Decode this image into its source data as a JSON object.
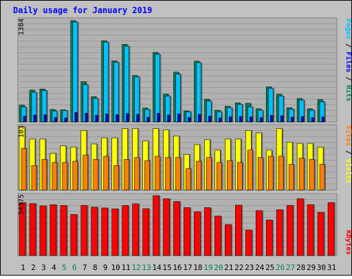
{
  "chart_data": {
    "type": "bar",
    "title": "Daily usage for January 2019",
    "days": [
      "1",
      "2",
      "3",
      "4",
      "5",
      "6",
      "7",
      "8",
      "9",
      "10",
      "11",
      "12",
      "13",
      "14",
      "15",
      "16",
      "17",
      "18",
      "19",
      "20",
      "21",
      "22",
      "23",
      "24",
      "25",
      "26",
      "27",
      "28",
      "29",
      "30",
      "31"
    ],
    "weekend_days": [
      "5",
      "6",
      "12",
      "13",
      "19",
      "20",
      "26",
      "27"
    ],
    "panels": {
      "hits_files": {
        "ymax_label": "1384",
        "ymax": 1384,
        "labels": {
          "pages": "Pages",
          "files": "Files",
          "hits": "Hits",
          "sep": " / "
        },
        "series": {
          "hits": [
            230,
            435,
            450,
            170,
            165,
            1384,
            550,
            345,
            1110,
            835,
            1060,
            635,
            190,
            950,
            380,
            680,
            150,
            830,
            310,
            160,
            215,
            260,
            255,
            180,
            480,
            380,
            195,
            320,
            180,
            305,
            0
          ],
          "files": [
            205,
            405,
            430,
            150,
            155,
            1365,
            510,
            320,
            1090,
            815,
            1035,
            615,
            170,
            925,
            355,
            655,
            140,
            810,
            285,
            140,
            195,
            240,
            205,
            160,
            460,
            355,
            175,
            300,
            160,
            275,
            0
          ],
          "pages": [
            80,
            95,
            100,
            60,
            55,
            130,
            120,
            90,
            110,
            100,
            115,
            105,
            65,
            120,
            95,
            110,
            60,
            105,
            80,
            55,
            70,
            75,
            70,
            60,
            90,
            85,
            65,
            75,
            60,
            70,
            0
          ]
        }
      },
      "sites_visits": {
        "ymax_label": "103",
        "ymax": 103,
        "labels": {
          "sites": "Sites",
          "visits": "Visits",
          "sep": " / "
        },
        "series": {
          "visits": [
            103,
            83,
            83,
            60,
            72,
            70,
            97,
            75,
            85,
            85,
            100,
            100,
            80,
            100,
            98,
            88,
            58,
            74,
            82,
            65,
            83,
            83,
            97,
            93,
            65,
            100,
            78,
            76,
            76,
            70,
            0
          ],
          "sites": [
            68,
            40,
            50,
            45,
            45,
            47,
            57,
            50,
            55,
            40,
            50,
            53,
            48,
            55,
            53,
            53,
            35,
            47,
            53,
            45,
            48,
            45,
            65,
            53,
            55,
            55,
            42,
            52,
            50,
            42,
            0
          ]
        }
      },
      "kbytes": {
        "ymax_label": "34375",
        "ymax": 34375,
        "label": "KBytes",
        "values": [
          30400,
          29800,
          28500,
          29200,
          28700,
          23600,
          28800,
          27800,
          27300,
          26800,
          28700,
          29700,
          26900,
          34375,
          32600,
          31000,
          27500,
          25100,
          27500,
          22700,
          17800,
          28900,
          14600,
          25800,
          20400,
          26300,
          28800,
          32600,
          29200,
          24800,
          30400
        ]
      }
    }
  },
  "colors": {
    "background": "#c0c0c0",
    "plot_bg": "#b2b2b2",
    "grid": "#999999",
    "title": "#0000ff",
    "hits": "#00805c",
    "files": "#0000ff",
    "pages": "#00c0ff",
    "sites": "#ff8000",
    "visits": "#ffff00",
    "kbytes": "#ff0000",
    "weekday_label": "#000000",
    "weekend_label": "#00805c"
  }
}
